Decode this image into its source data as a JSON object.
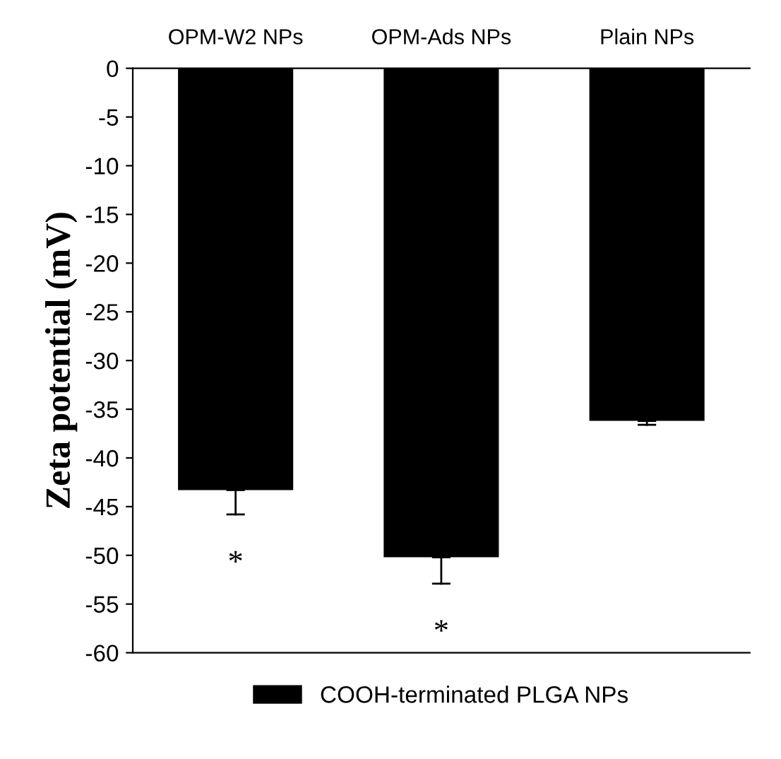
{
  "chart_data": {
    "type": "bar",
    "ylabel": "Zeta potential (mV)",
    "categories": [
      "OPM-W2 NPs",
      "OPM-Ads NPs",
      "Plain NPs"
    ],
    "series": [
      {
        "name": "COOH-terminated PLGA NPs",
        "color": "#000000",
        "values": [
          -43.3,
          -50.2,
          -36.2
        ],
        "errors": [
          [
            -45.8,
            -43.3
          ],
          [
            -52.9,
            -50.2
          ],
          [
            -36.6,
            -36.2
          ]
        ]
      }
    ],
    "ylim": [
      -60,
      0
    ],
    "yticks": [
      -60,
      -55,
      -50,
      -45,
      -40,
      -35,
      -30,
      -25,
      -20,
      -15,
      -10,
      -5,
      0
    ],
    "annotations": [
      "*",
      "*"
    ],
    "grid": false,
    "legend": "bottom"
  }
}
